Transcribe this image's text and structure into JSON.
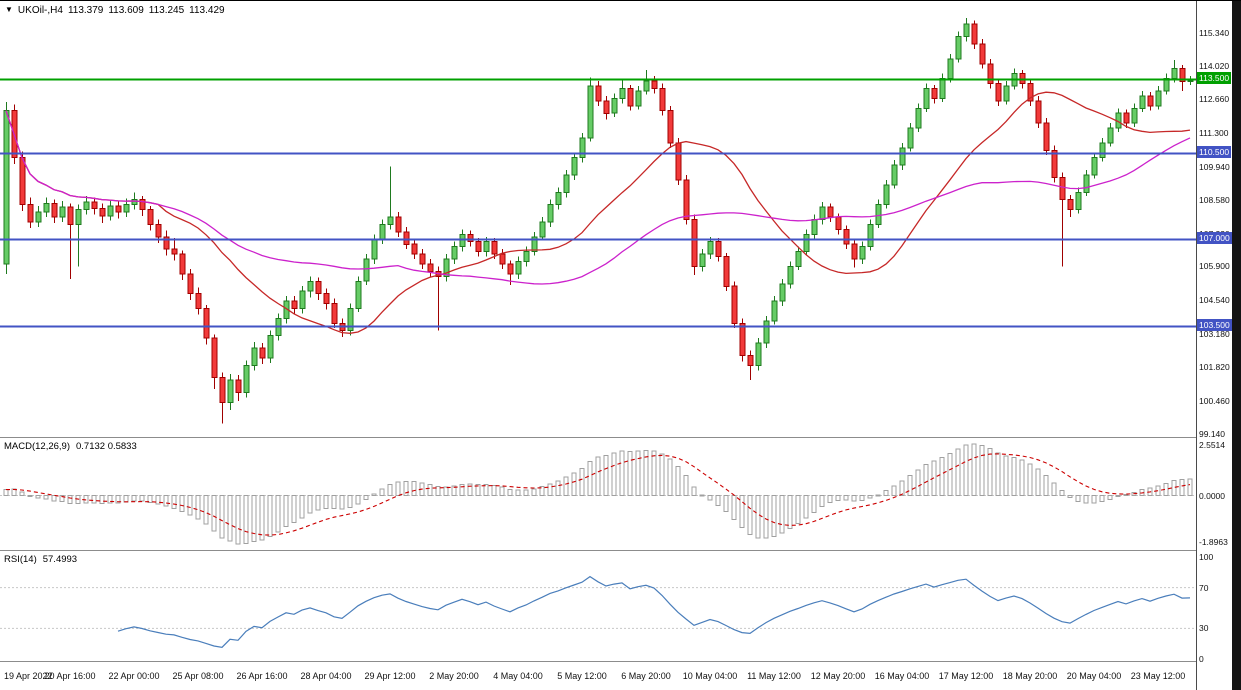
{
  "header": {
    "marker": "▼",
    "symbol": "UKOil-,H4",
    "open": "113.379",
    "high": "113.609",
    "low": "113.245",
    "close": "113.429"
  },
  "colors": {
    "bull_fill": "#66cc66",
    "bull_border": "#1f7a1f",
    "bear_fill": "#f23a3a",
    "bear_border": "#a00000",
    "ma_fast": "#c62828",
    "ma_slow": "#cc22cc",
    "macd_hist": "#a0a0a0",
    "macd_signal": "#cc0000",
    "rsi_line": "#4a7ebb",
    "grid": "#c8c8c8",
    "level_green": "#00a000",
    "level_blue": "#4253c4"
  },
  "levels": [
    {
      "label": "113.500",
      "value": 113.5,
      "color": "#00a000"
    },
    {
      "label": "110.500",
      "value": 110.5,
      "color": "#4253c4"
    },
    {
      "label": "107.000",
      "value": 107.0,
      "color": "#4253c4"
    },
    {
      "label": "103.500",
      "value": 103.5,
      "color": "#4253c4"
    }
  ],
  "price_axis": {
    "labels": [
      "115.340",
      "114.020",
      "112.660",
      "111.300",
      "109.940",
      "108.580",
      "107.220",
      "105.900",
      "104.540",
      "103.180",
      "101.820",
      "100.460",
      "99.140"
    ]
  },
  "time_axis": {
    "bars_per_label": 8,
    "labels": [
      "19 Apr 2022",
      "20 Apr 16:00",
      "22 Apr 00:00",
      "25 Apr 08:00",
      "26 Apr 16:00",
      "28 Apr 04:00",
      "29 Apr 12:00",
      "2 May 20:00",
      "4 May 04:00",
      "5 May 12:00",
      "6 May 20:00",
      "10 May 04:00",
      "11 May 12:00",
      "12 May 20:00",
      "16 May 04:00",
      "17 May 12:00",
      "18 May 20:00",
      "20 May 04:00",
      "23 May 12:00"
    ]
  },
  "chart_data": {
    "type": "candlestick",
    "symbol": "UKOil-",
    "timeframe": "H4",
    "title": "UKOil-,H4",
    "ylim": [
      99.0,
      116.6
    ],
    "overlays": [
      {
        "name": "ma-fast",
        "period": 20,
        "color": "#c62828"
      },
      {
        "name": "ma-slow",
        "period": 50,
        "color": "#cc22cc"
      }
    ],
    "indicators": [
      {
        "name": "MACD",
        "label": "MACD(12,26,9)",
        "values": "0.7132 0.5833",
        "axis_labels": [
          "2.5514",
          "0.0000",
          "-1.8963"
        ],
        "fast": 12,
        "slow": 26,
        "signal": 9
      },
      {
        "name": "RSI",
        "label": "RSI(14)",
        "values": "57.4993",
        "axis_labels": [
          "100",
          "70",
          "30",
          "0"
        ],
        "levels": [
          70,
          30
        ],
        "period": 14
      }
    ],
    "candles": [
      [
        106.0,
        112.55,
        105.6,
        112.2
      ],
      [
        112.2,
        112.45,
        110.05,
        110.3
      ],
      [
        110.3,
        110.55,
        108.15,
        108.4
      ],
      [
        108.4,
        108.7,
        107.45,
        107.7
      ],
      [
        107.7,
        108.35,
        107.5,
        108.1
      ],
      [
        108.1,
        108.7,
        107.9,
        108.45
      ],
      [
        108.45,
        108.6,
        107.65,
        107.9
      ],
      [
        107.9,
        108.55,
        107.7,
        108.3
      ],
      [
        108.3,
        108.45,
        105.4,
        107.6
      ],
      [
        107.6,
        108.4,
        105.9,
        108.2
      ],
      [
        108.2,
        108.75,
        108.0,
        108.5
      ],
      [
        108.5,
        108.7,
        108.0,
        108.25
      ],
      [
        108.25,
        108.45,
        107.65,
        107.95
      ],
      [
        107.95,
        108.6,
        107.75,
        108.35
      ],
      [
        108.35,
        108.55,
        107.85,
        108.1
      ],
      [
        108.1,
        108.65,
        107.9,
        108.4
      ],
      [
        108.4,
        108.9,
        108.2,
        108.6
      ],
      [
        108.6,
        108.75,
        107.95,
        108.2
      ],
      [
        108.2,
        108.35,
        107.35,
        107.6
      ],
      [
        107.6,
        107.8,
        106.85,
        107.1
      ],
      [
        107.1,
        107.35,
        106.35,
        106.6
      ],
      [
        106.6,
        107.05,
        106.15,
        106.4
      ],
      [
        106.4,
        106.55,
        105.35,
        105.6
      ],
      [
        105.6,
        105.8,
        104.55,
        104.8
      ],
      [
        104.8,
        105.05,
        103.95,
        104.2
      ],
      [
        104.2,
        104.35,
        102.75,
        103.0
      ],
      [
        103.0,
        103.15,
        100.95,
        101.4
      ],
      [
        101.4,
        101.6,
        99.55,
        100.4
      ],
      [
        100.4,
        101.55,
        100.1,
        101.3
      ],
      [
        101.3,
        101.5,
        100.45,
        100.8
      ],
      [
        100.8,
        102.1,
        100.6,
        101.9
      ],
      [
        101.9,
        102.85,
        101.7,
        102.6
      ],
      [
        102.6,
        102.8,
        101.95,
        102.2
      ],
      [
        102.2,
        103.3,
        102.0,
        103.1
      ],
      [
        103.1,
        104.0,
        102.9,
        103.8
      ],
      [
        103.8,
        104.7,
        103.6,
        104.5
      ],
      [
        104.5,
        104.7,
        103.95,
        104.2
      ],
      [
        104.2,
        105.1,
        104.0,
        104.9
      ],
      [
        104.9,
        105.5,
        104.65,
        105.3
      ],
      [
        105.3,
        105.45,
        104.55,
        104.8
      ],
      [
        104.8,
        105.0,
        104.15,
        104.4
      ],
      [
        104.4,
        104.6,
        103.4,
        103.6
      ],
      [
        103.6,
        103.8,
        103.05,
        103.3
      ],
      [
        103.3,
        104.4,
        103.1,
        104.2
      ],
      [
        104.2,
        105.5,
        104.05,
        105.3
      ],
      [
        105.3,
        106.4,
        105.15,
        106.2
      ],
      [
        106.2,
        107.2,
        106.0,
        107.0
      ],
      [
        107.0,
        107.8,
        106.8,
        107.6
      ],
      [
        107.6,
        109.95,
        107.4,
        107.9
      ],
      [
        107.9,
        108.1,
        107.1,
        107.3
      ],
      [
        107.3,
        107.5,
        106.6,
        106.8
      ],
      [
        106.8,
        107.0,
        106.2,
        106.4
      ],
      [
        106.4,
        106.6,
        105.8,
        106.0
      ],
      [
        106.0,
        106.2,
        105.45,
        105.7
      ],
      [
        105.7,
        105.9,
        103.3,
        105.5
      ],
      [
        105.5,
        106.4,
        105.3,
        106.2
      ],
      [
        106.2,
        106.9,
        106.0,
        106.7
      ],
      [
        106.7,
        107.4,
        106.5,
        107.2
      ],
      [
        107.2,
        107.35,
        106.7,
        106.9
      ],
      [
        106.9,
        107.05,
        106.3,
        106.5
      ],
      [
        106.5,
        107.1,
        106.3,
        106.9
      ],
      [
        106.9,
        107.05,
        106.2,
        106.4
      ],
      [
        106.4,
        106.6,
        105.8,
        106.0
      ],
      [
        106.0,
        106.15,
        105.15,
        105.6
      ],
      [
        105.6,
        106.3,
        105.4,
        106.1
      ],
      [
        106.1,
        106.7,
        105.9,
        106.5
      ],
      [
        106.5,
        107.3,
        106.35,
        107.1
      ],
      [
        107.1,
        107.9,
        106.95,
        107.7
      ],
      [
        107.7,
        108.6,
        107.5,
        108.4
      ],
      [
        108.4,
        109.1,
        108.2,
        108.9
      ],
      [
        108.9,
        109.8,
        108.7,
        109.6
      ],
      [
        109.6,
        110.5,
        109.4,
        110.3
      ],
      [
        110.3,
        111.3,
        110.1,
        111.1
      ],
      [
        111.1,
        113.55,
        110.95,
        113.2
      ],
      [
        113.2,
        113.4,
        112.4,
        112.6
      ],
      [
        112.6,
        112.8,
        111.85,
        112.1
      ],
      [
        112.1,
        112.9,
        111.95,
        112.7
      ],
      [
        112.7,
        113.5,
        112.5,
        113.1
      ],
      [
        113.1,
        113.25,
        112.2,
        112.4
      ],
      [
        112.4,
        113.2,
        112.25,
        113.0
      ],
      [
        113.0,
        113.85,
        112.85,
        113.4
      ],
      [
        113.4,
        113.6,
        112.9,
        113.1
      ],
      [
        113.1,
        113.3,
        112.0,
        112.2
      ],
      [
        112.2,
        112.4,
        110.7,
        110.9
      ],
      [
        110.9,
        111.1,
        109.2,
        109.4
      ],
      [
        109.4,
        109.6,
        107.6,
        107.8
      ],
      [
        107.8,
        108.0,
        105.55,
        105.9
      ],
      [
        105.9,
        106.6,
        105.7,
        106.4
      ],
      [
        106.4,
        107.1,
        106.2,
        106.9
      ],
      [
        106.9,
        107.05,
        106.1,
        106.3
      ],
      [
        106.3,
        106.45,
        104.9,
        105.1
      ],
      [
        105.1,
        105.3,
        103.4,
        103.6
      ],
      [
        103.6,
        103.8,
        102.05,
        102.3
      ],
      [
        102.3,
        102.5,
        101.3,
        101.9
      ],
      [
        101.9,
        103.0,
        101.7,
        102.8
      ],
      [
        102.8,
        103.9,
        102.6,
        103.7
      ],
      [
        103.7,
        104.7,
        103.55,
        104.5
      ],
      [
        104.5,
        105.4,
        104.3,
        105.2
      ],
      [
        105.2,
        106.1,
        105.0,
        105.9
      ],
      [
        105.9,
        106.7,
        105.75,
        106.5
      ],
      [
        106.5,
        107.4,
        106.35,
        107.2
      ],
      [
        107.2,
        108.0,
        107.0,
        107.8
      ],
      [
        107.8,
        108.5,
        107.6,
        108.3
      ],
      [
        108.3,
        108.45,
        107.7,
        107.9
      ],
      [
        107.9,
        108.05,
        107.2,
        107.4
      ],
      [
        107.4,
        107.55,
        106.6,
        106.8
      ],
      [
        106.8,
        106.95,
        105.85,
        106.2
      ],
      [
        106.2,
        106.9,
        106.0,
        106.7
      ],
      [
        106.7,
        107.8,
        106.55,
        107.6
      ],
      [
        107.6,
        108.6,
        107.45,
        108.4
      ],
      [
        108.4,
        109.4,
        108.25,
        109.2
      ],
      [
        109.2,
        110.2,
        109.05,
        110.0
      ],
      [
        110.0,
        110.9,
        109.8,
        110.7
      ],
      [
        110.7,
        111.7,
        110.55,
        111.5
      ],
      [
        111.5,
        112.5,
        111.35,
        112.3
      ],
      [
        112.3,
        113.3,
        112.15,
        113.1
      ],
      [
        113.1,
        113.25,
        112.5,
        112.7
      ],
      [
        112.7,
        113.7,
        112.55,
        113.5
      ],
      [
        113.5,
        114.5,
        113.35,
        114.3
      ],
      [
        114.3,
        115.4,
        114.15,
        115.2
      ],
      [
        115.2,
        115.95,
        115.0,
        115.7
      ],
      [
        115.7,
        115.85,
        114.7,
        114.9
      ],
      [
        114.9,
        115.1,
        113.9,
        114.1
      ],
      [
        114.1,
        114.3,
        113.1,
        113.3
      ],
      [
        113.3,
        113.5,
        112.4,
        112.6
      ],
      [
        112.6,
        113.4,
        112.45,
        113.2
      ],
      [
        113.2,
        113.9,
        113.05,
        113.7
      ],
      [
        113.7,
        113.85,
        113.1,
        113.3
      ],
      [
        113.3,
        113.45,
        112.4,
        112.6
      ],
      [
        112.6,
        112.8,
        111.5,
        111.7
      ],
      [
        111.7,
        111.9,
        110.4,
        110.6
      ],
      [
        110.6,
        110.8,
        109.3,
        109.5
      ],
      [
        109.5,
        109.7,
        105.9,
        108.6
      ],
      [
        108.6,
        108.8,
        107.9,
        108.2
      ],
      [
        108.2,
        109.1,
        108.05,
        108.9
      ],
      [
        108.9,
        109.8,
        108.75,
        109.6
      ],
      [
        109.6,
        110.5,
        109.45,
        110.3
      ],
      [
        110.3,
        111.1,
        110.15,
        110.9
      ],
      [
        110.9,
        111.7,
        110.75,
        111.5
      ],
      [
        111.5,
        112.3,
        111.35,
        112.1
      ],
      [
        112.1,
        112.25,
        111.5,
        111.7
      ],
      [
        111.7,
        112.5,
        111.55,
        112.3
      ],
      [
        112.3,
        113.0,
        112.15,
        112.8
      ],
      [
        112.8,
        112.95,
        112.2,
        112.4
      ],
      [
        112.4,
        113.2,
        112.25,
        113.0
      ],
      [
        113.0,
        113.7,
        112.85,
        113.5
      ],
      [
        113.5,
        114.25,
        113.35,
        113.9
      ],
      [
        113.9,
        114.05,
        113.0,
        113.38
      ],
      [
        113.379,
        113.609,
        113.245,
        113.429
      ]
    ]
  }
}
